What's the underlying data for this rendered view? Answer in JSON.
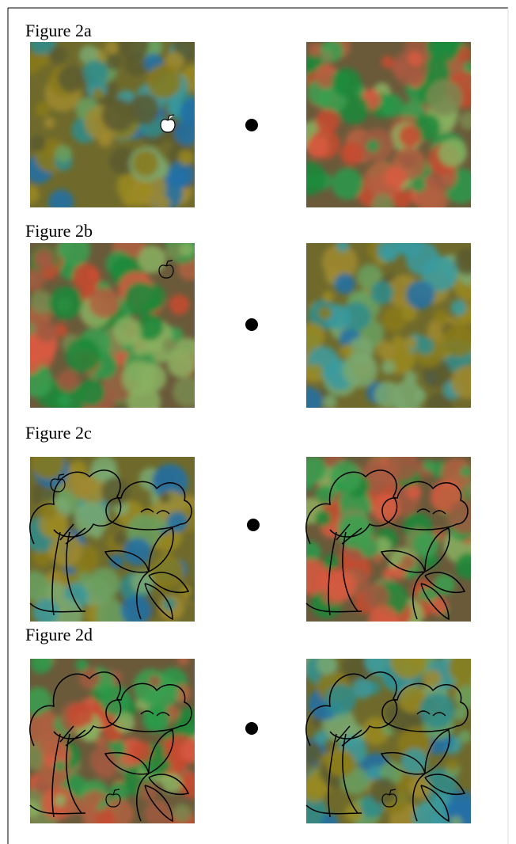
{
  "figures": [
    {
      "label": "Figure 2a"
    },
    {
      "label": "Figure 2b"
    },
    {
      "label": "Figure 2c"
    },
    {
      "label": "Figure 2d"
    }
  ]
}
